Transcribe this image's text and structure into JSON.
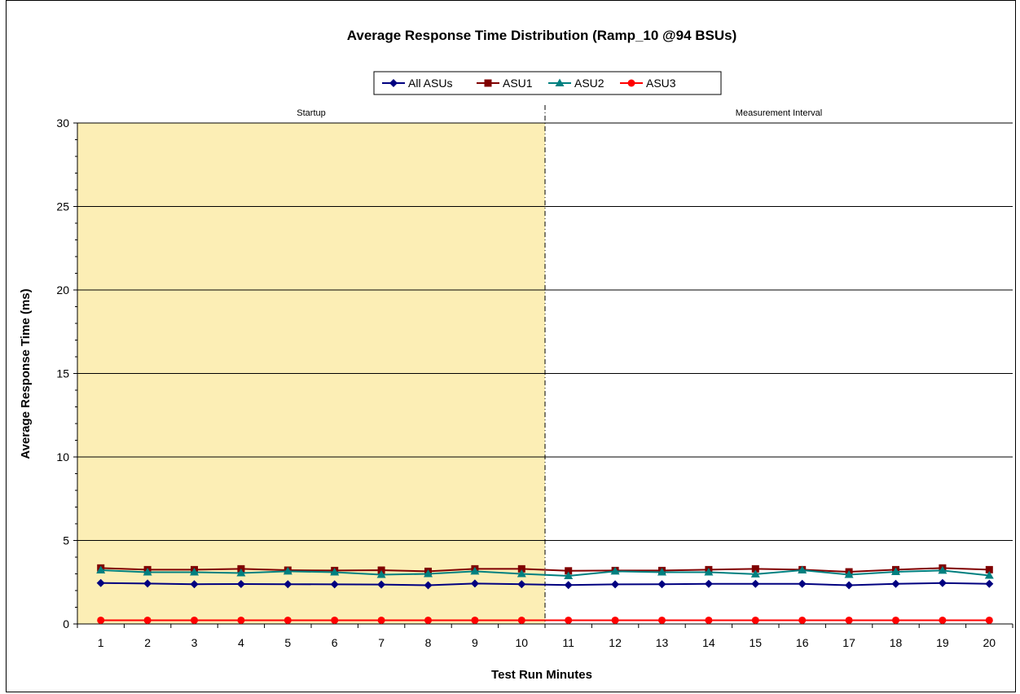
{
  "chart_data": {
    "type": "line",
    "title": "Average Response Time Distribution (Ramp_10 @94 BSUs)",
    "xlabel": "Test Run Minutes",
    "ylabel": "Average Response  Time (ms)",
    "x": [
      1,
      2,
      3,
      4,
      5,
      6,
      7,
      8,
      9,
      10,
      11,
      12,
      13,
      14,
      15,
      16,
      17,
      18,
      19,
      20
    ],
    "ylim": [
      0,
      30
    ],
    "yticks": [
      0,
      5,
      10,
      15,
      20,
      25,
      30
    ],
    "grid": true,
    "legend_position": "top-center",
    "regions": [
      {
        "label": "Startup",
        "x_start": 0.5,
        "x_end": 10.5,
        "fill": "#FCEEB5"
      },
      {
        "label": "Measurement Interval",
        "x_start": 10.5,
        "x_end": 20.5,
        "fill": "#FFFFFF"
      }
    ],
    "series": [
      {
        "name": "All ASUs",
        "color": "#000080",
        "marker": "diamond",
        "values": [
          2.45,
          2.42,
          2.38,
          2.39,
          2.38,
          2.37,
          2.36,
          2.32,
          2.42,
          2.38,
          2.33,
          2.37,
          2.38,
          2.4,
          2.4,
          2.4,
          2.32,
          2.4,
          2.45,
          2.4
        ]
      },
      {
        "name": "ASU1",
        "color": "#800000",
        "marker": "square",
        "values": [
          3.35,
          3.25,
          3.25,
          3.3,
          3.22,
          3.2,
          3.22,
          3.15,
          3.3,
          3.3,
          3.18,
          3.2,
          3.2,
          3.25,
          3.3,
          3.25,
          3.12,
          3.25,
          3.35,
          3.25
        ]
      },
      {
        "name": "ASU2",
        "color": "#008080",
        "marker": "triangle",
        "values": [
          3.22,
          3.1,
          3.1,
          3.05,
          3.15,
          3.1,
          2.95,
          3.0,
          3.15,
          3.0,
          2.88,
          3.15,
          3.1,
          3.1,
          2.98,
          3.22,
          2.95,
          3.12,
          3.2,
          2.9
        ]
      },
      {
        "name": "ASU3",
        "color": "#FF0000",
        "marker": "circle",
        "values": [
          0.22,
          0.22,
          0.22,
          0.22,
          0.22,
          0.22,
          0.22,
          0.22,
          0.22,
          0.22,
          0.22,
          0.22,
          0.22,
          0.22,
          0.22,
          0.22,
          0.22,
          0.22,
          0.22,
          0.22
        ]
      }
    ]
  }
}
